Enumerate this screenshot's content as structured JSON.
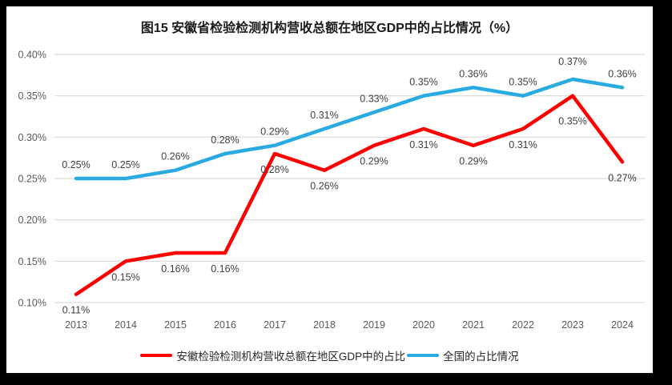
{
  "chart_data": {
    "type": "line",
    "title": "图15  安徽省检验检测机构营收总额在地区GDP中的占比情况（%）",
    "categories": [
      "2013",
      "2014",
      "2015",
      "2016",
      "2017",
      "2018",
      "2019",
      "2020",
      "2021",
      "2022",
      "2023",
      "2024"
    ],
    "series": [
      {
        "name": "安徽检验检测机构营收总额在地区GDP中的占比",
        "color": "#fe0000",
        "values": [
          0.11,
          0.15,
          0.16,
          0.16,
          0.28,
          0.26,
          0.29,
          0.31,
          0.29,
          0.31,
          0.35,
          0.27
        ],
        "labels": [
          "0.11%",
          "0.15%",
          "0.16%",
          "0.16%",
          "0.28%",
          "0.26%",
          "0.29%",
          "0.31%",
          "0.29%",
          "0.31%",
          "0.35%",
          "0.27%"
        ],
        "label_position": "below",
        "label_dy_override": {
          "10": 36
        }
      },
      {
        "name": "全国的占比情况",
        "color": "#29abe2",
        "values": [
          0.25,
          0.25,
          0.26,
          0.28,
          0.29,
          0.31,
          0.33,
          0.35,
          0.36,
          0.35,
          0.37,
          0.36
        ],
        "labels": [
          "0.25%",
          "0.25%",
          "0.26%",
          "0.28%",
          "0.29%",
          "0.31%",
          "0.33%",
          "0.35%",
          "0.36%",
          "0.35%",
          "0.37%",
          "0.36%"
        ],
        "label_position": "above",
        "label_dy_override": {
          "10": -18
        }
      }
    ],
    "ylim": [
      0.1,
      0.4
    ],
    "yticks": [
      {
        "value": 0.1,
        "label": "0.10%"
      },
      {
        "value": 0.15,
        "label": "0.15%"
      },
      {
        "value": 0.2,
        "label": "0.20%"
      },
      {
        "value": 0.25,
        "label": "0.25%"
      },
      {
        "value": 0.3,
        "label": "0.30%"
      },
      {
        "value": 0.35,
        "label": "0.35%"
      },
      {
        "value": 0.4,
        "label": "0.40%"
      }
    ],
    "grid": true,
    "legend_position": "bottom",
    "xlabel": "",
    "ylabel": ""
  },
  "colors": {
    "page_background": "#000000",
    "canvas_background": "#ffffff",
    "gridline": "#d9d9d9",
    "tick_text": "#595959",
    "data_label_text": "#404040",
    "title_text": "#1a1a1a",
    "series_anhui": "#fe0000",
    "series_national": "#29abe2"
  }
}
